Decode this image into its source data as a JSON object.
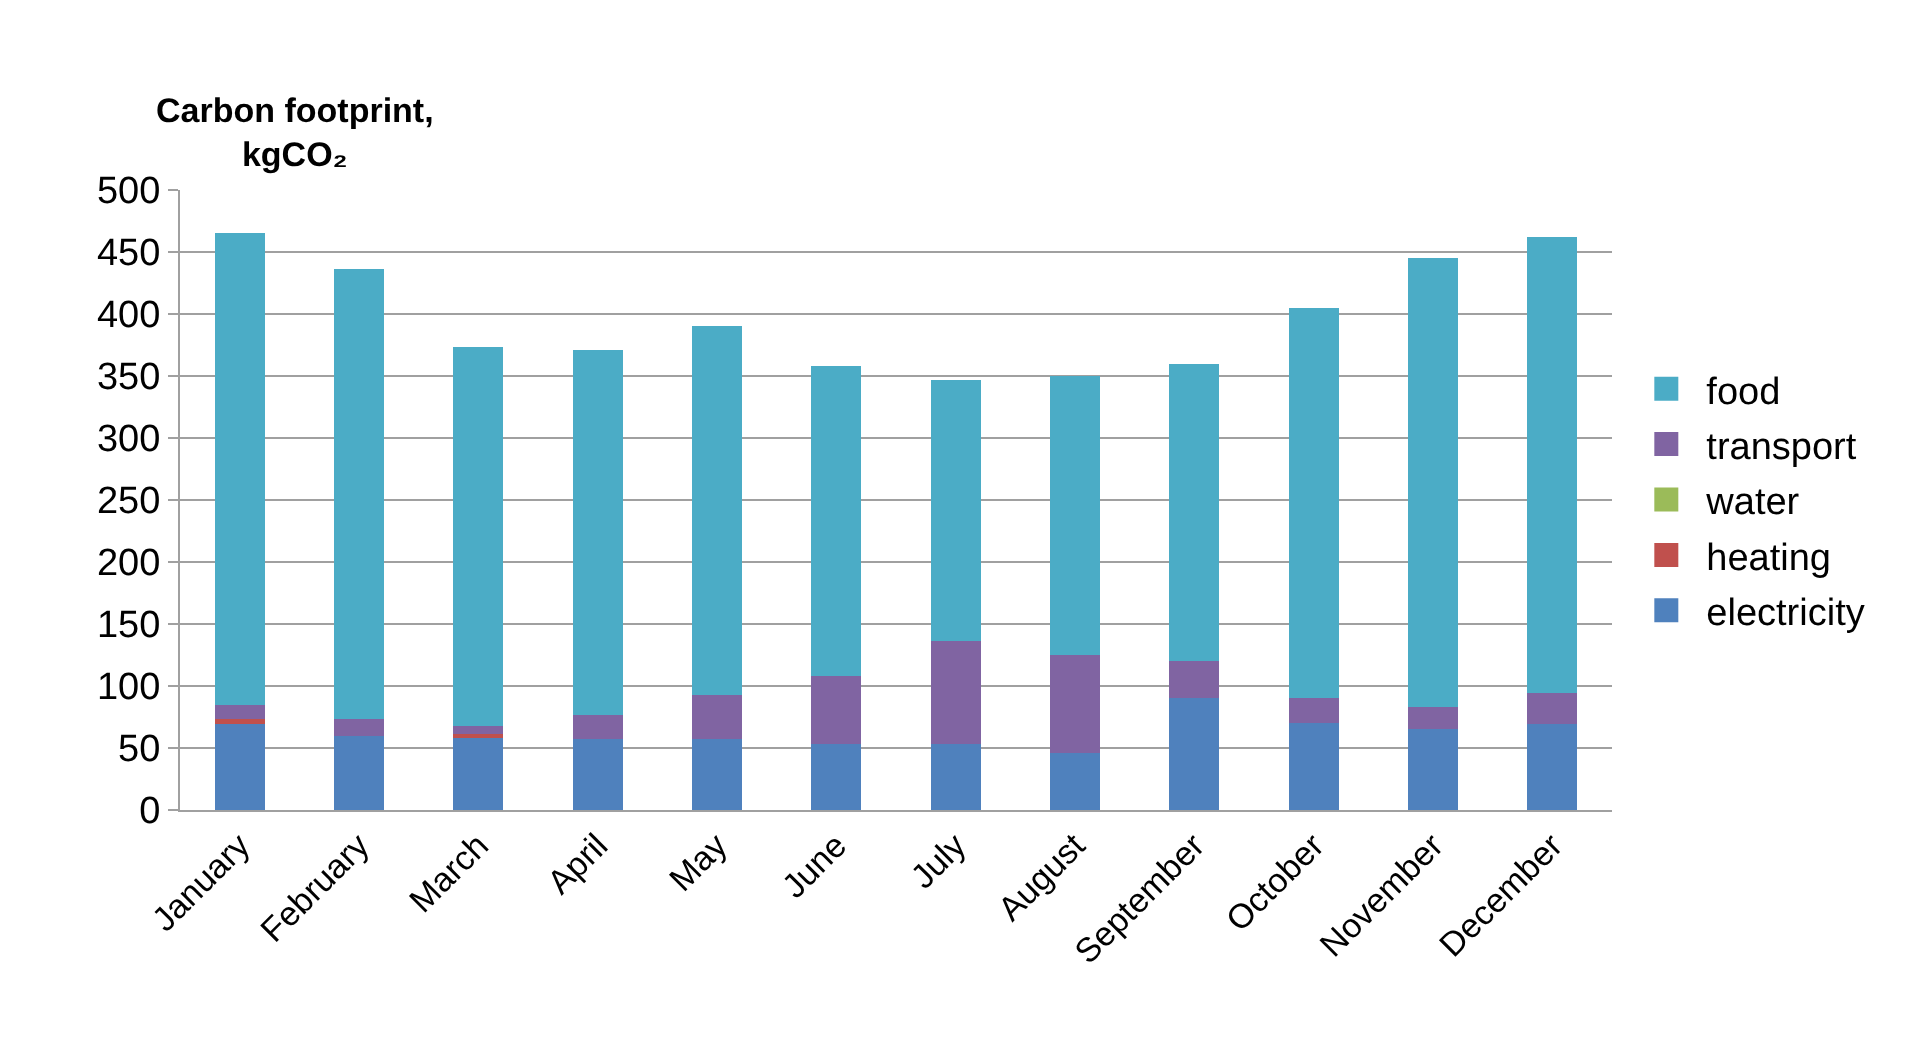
{
  "chart_data": {
    "type": "bar",
    "stacked": true,
    "title": "Carbon footprint, kgCO₂",
    "categories": [
      "January",
      "February",
      "March",
      "April",
      "May",
      "June",
      "July",
      "August",
      "September",
      "October",
      "November",
      "December"
    ],
    "series": [
      {
        "name": "electricity",
        "color": "#4f81bd",
        "values": [
          70,
          60,
          59,
          57,
          57,
          53,
          53,
          46,
          90,
          70,
          65,
          69
        ]
      },
      {
        "name": "heating",
        "color": "#c0504d",
        "values": [
          3,
          0,
          2,
          0,
          0,
          0,
          0,
          0,
          0,
          0,
          0,
          0
        ]
      },
      {
        "name": "water",
        "color": "#9bbb59",
        "values": [
          0,
          0,
          0,
          0,
          0,
          0,
          0,
          0,
          0,
          0,
          0,
          0
        ]
      },
      {
        "name": "transport",
        "color": "#8064a2",
        "values": [
          12,
          13,
          7,
          20,
          36,
          55,
          83,
          79,
          30,
          20,
          18,
          25
        ]
      },
      {
        "name": "food",
        "color": "#4bacc6",
        "values": [
          380,
          363,
          305,
          294,
          297,
          250,
          211,
          225,
          240,
          315,
          362,
          368
        ]
      }
    ],
    "ylim": [
      0,
      500
    ],
    "yticks": [
      0,
      50,
      100,
      150,
      200,
      250,
      300,
      350,
      400,
      450,
      500
    ],
    "grid": "y",
    "legend": "right"
  }
}
